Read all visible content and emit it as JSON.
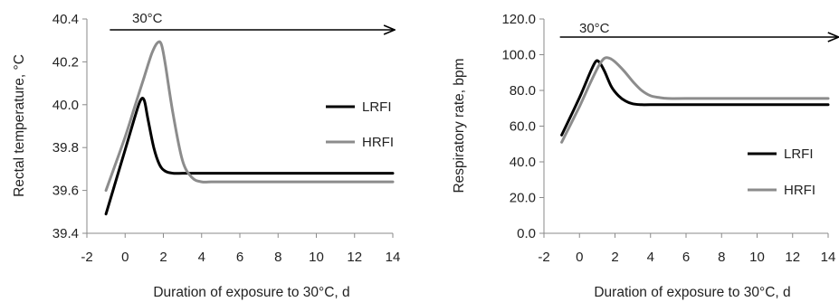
{
  "chart_data": [
    {
      "type": "line",
      "xlabel": "Duration of exposure to 30°C, d",
      "ylabel": "Rectal temperature, °C",
      "xlim": [
        -2,
        14
      ],
      "ylim": [
        39.4,
        40.4
      ],
      "x_ticks": [
        "-2",
        "0",
        "2",
        "4",
        "6",
        "8",
        "10",
        "12",
        "14"
      ],
      "y_ticks": [
        "39.4",
        "39.6",
        "39.8",
        "40.0",
        "40.2",
        "40.4"
      ],
      "annotation": "30°C",
      "annotation_arrow_x": [
        -0.8,
        14.1
      ],
      "legend_position": "right",
      "grid": false,
      "series": [
        {
          "name": "LRFI",
          "color": "#000000",
          "x": [
            -1,
            0,
            0.5,
            0.8,
            1.0,
            1.2,
            1.5,
            1.8,
            2.1,
            2.5,
            3.0,
            3.5,
            4.0,
            6.0,
            10.0,
            14.0
          ],
          "y": [
            39.49,
            39.79,
            39.94,
            40.02,
            40.02,
            39.93,
            39.8,
            39.72,
            39.69,
            39.68,
            39.68,
            39.68,
            39.68,
            39.68,
            39.68,
            39.68
          ]
        },
        {
          "name": "HRFI",
          "color": "#8c8c8c",
          "x": [
            -1,
            0,
            0.5,
            1.0,
            1.4,
            1.7,
            1.9,
            2.1,
            2.5,
            3.0,
            3.5,
            4.0,
            4.5,
            5.0,
            6.0,
            10.0,
            14.0
          ],
          "y": [
            39.6,
            39.85,
            39.99,
            40.13,
            40.24,
            40.29,
            40.28,
            40.19,
            39.96,
            39.74,
            39.66,
            39.64,
            39.64,
            39.64,
            39.64,
            39.64,
            39.64
          ]
        }
      ]
    },
    {
      "type": "line",
      "xlabel": "Duration of exposure to 30°C, d",
      "ylabel": "Respiratory rate, bpm",
      "xlim": [
        -2,
        14
      ],
      "ylim": [
        0,
        120
      ],
      "x_ticks": [
        "-2",
        "0",
        "2",
        "4",
        "6",
        "8",
        "10",
        "12",
        "14"
      ],
      "y_ticks": [
        "0.0",
        "20.0",
        "40.0",
        "60.0",
        "80.0",
        "100.0",
        "120.0"
      ],
      "annotation": "30°C",
      "annotation_arrow_x": [
        -1.1,
        14.6
      ],
      "legend_position": "bottom-right",
      "grid": false,
      "series": [
        {
          "name": "LRFI",
          "color": "#000000",
          "x": [
            -1,
            0,
            0.6,
            0.9,
            1.1,
            1.4,
            1.8,
            2.2,
            2.6,
            3.0,
            3.5,
            4.0,
            6.0,
            10.0,
            14.0
          ],
          "y": [
            55,
            76,
            90,
            96,
            96,
            91,
            82,
            77,
            74,
            72.5,
            72,
            72,
            72,
            72,
            72
          ]
        },
        {
          "name": "HRFI",
          "color": "#8c8c8c",
          "x": [
            -1,
            0,
            0.6,
            1.1,
            1.4,
            1.7,
            2.0,
            2.5,
            3.0,
            3.5,
            4.0,
            4.5,
            5.0,
            6.0,
            10.0,
            14.0
          ],
          "y": [
            51,
            71,
            84,
            94,
            98,
            98,
            96,
            91,
            85,
            80,
            77,
            76,
            75.5,
            75.5,
            75.5,
            75.5
          ]
        }
      ]
    }
  ]
}
